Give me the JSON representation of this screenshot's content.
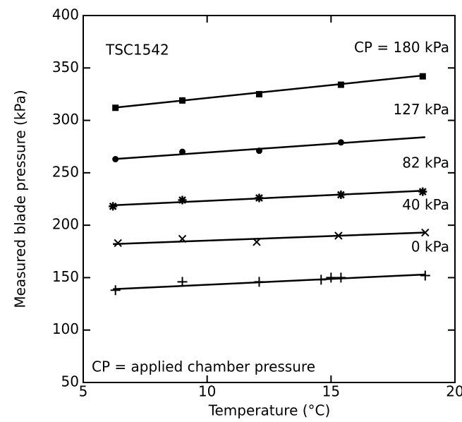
{
  "chart_data": {
    "type": "scatter",
    "xlabel": "Temperature (°C)",
    "ylabel": "Measured blade pressure (kPa)",
    "annotations": [
      "TSC1542",
      "CP = applied chamber pressure"
    ],
    "xlim": [
      5,
      20
    ],
    "xticks": [
      5,
      10,
      15,
      20
    ],
    "ylim": [
      50,
      400
    ],
    "yticks": [
      50,
      100,
      150,
      200,
      250,
      300,
      350,
      400
    ],
    "color": "#000000",
    "series": [
      {
        "name": "CP = 180 kPa",
        "marker": "square",
        "x": [
          6.3,
          9,
          12.1,
          15.4,
          18.7
        ],
        "values": [
          312,
          319,
          325,
          334,
          342
        ],
        "fit_x": [
          6.2,
          18.8
        ],
        "fit": [
          312,
          343
        ]
      },
      {
        "name": "127 kPa",
        "marker": "circle",
        "x": [
          6.3,
          9,
          12.1,
          15.4
        ],
        "values": [
          263,
          270,
          271,
          279
        ],
        "fit_x": [
          6.2,
          18.8
        ],
        "fit": [
          263,
          284
        ]
      },
      {
        "name": "82 kPa",
        "marker": "star",
        "x": [
          6.2,
          9,
          12.1,
          15.4,
          18.7
        ],
        "values": [
          218,
          224,
          226,
          229,
          232
        ],
        "fit_x": [
          6.2,
          18.8
        ],
        "fit": [
          219,
          233
        ]
      },
      {
        "name": "40 kPa",
        "marker": "cross",
        "x": [
          6.4,
          9,
          12,
          15.3,
          18.8
        ],
        "values": [
          183,
          187,
          184,
          190,
          193
        ],
        "fit_x": [
          6.2,
          18.8
        ],
        "fit": [
          182,
          193
        ]
      },
      {
        "name": "0 kPa",
        "marker": "plus",
        "x": [
          6.3,
          9,
          12.1,
          14.6,
          15,
          15.4,
          18.8
        ],
        "values": [
          138,
          146,
          146,
          148,
          150,
          150,
          152
        ],
        "fit_x": [
          6.2,
          18.8
        ],
        "fit": [
          139,
          153
        ]
      }
    ]
  }
}
